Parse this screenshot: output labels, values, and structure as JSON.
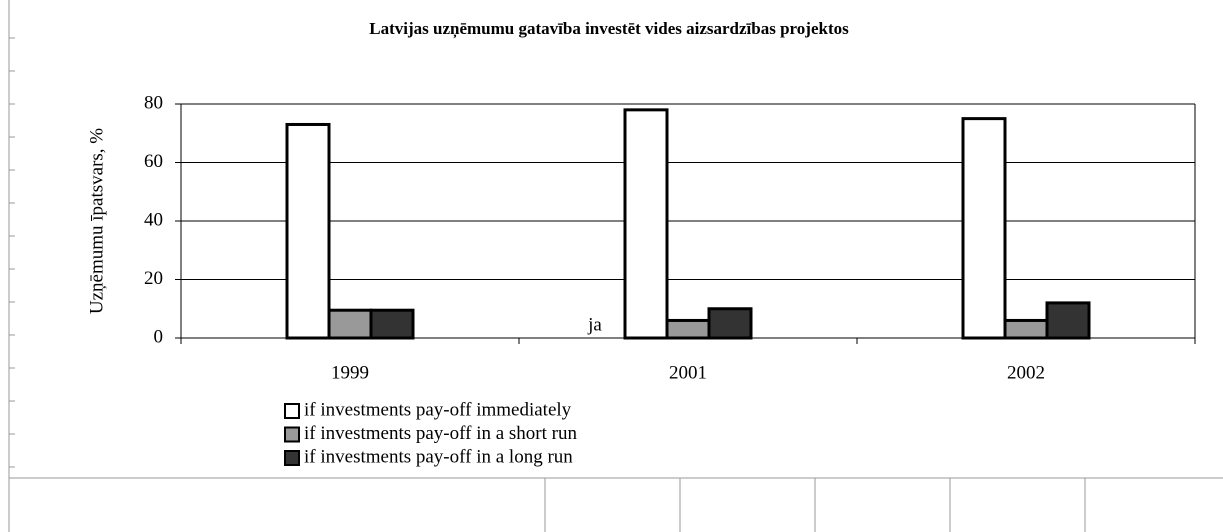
{
  "chart_data": {
    "type": "bar",
    "title": "Latvijas uzņēmumu gatavība investēt vides aizsardzības projektos",
    "y_label": "Uzņēmumu īpatsvars, %",
    "categories": [
      "1999",
      "2001",
      "2002"
    ],
    "series": [
      {
        "name": "if investments pay-off immediately",
        "color": "#ffffff",
        "values": [
          73,
          78,
          75
        ]
      },
      {
        "name": "if investments pay-off in a short run",
        "color": "#999999",
        "values": [
          9.5,
          6,
          6
        ]
      },
      {
        "name": "if investments pay-off in a long run",
        "color": "#333333",
        "values": [
          9.5,
          10,
          12
        ]
      }
    ],
    "annotation": "ja",
    "ylim": [
      0,
      80
    ],
    "yticks": [
      0,
      20,
      40,
      60,
      80
    ],
    "grid": true,
    "legend": "bottom-left"
  }
}
